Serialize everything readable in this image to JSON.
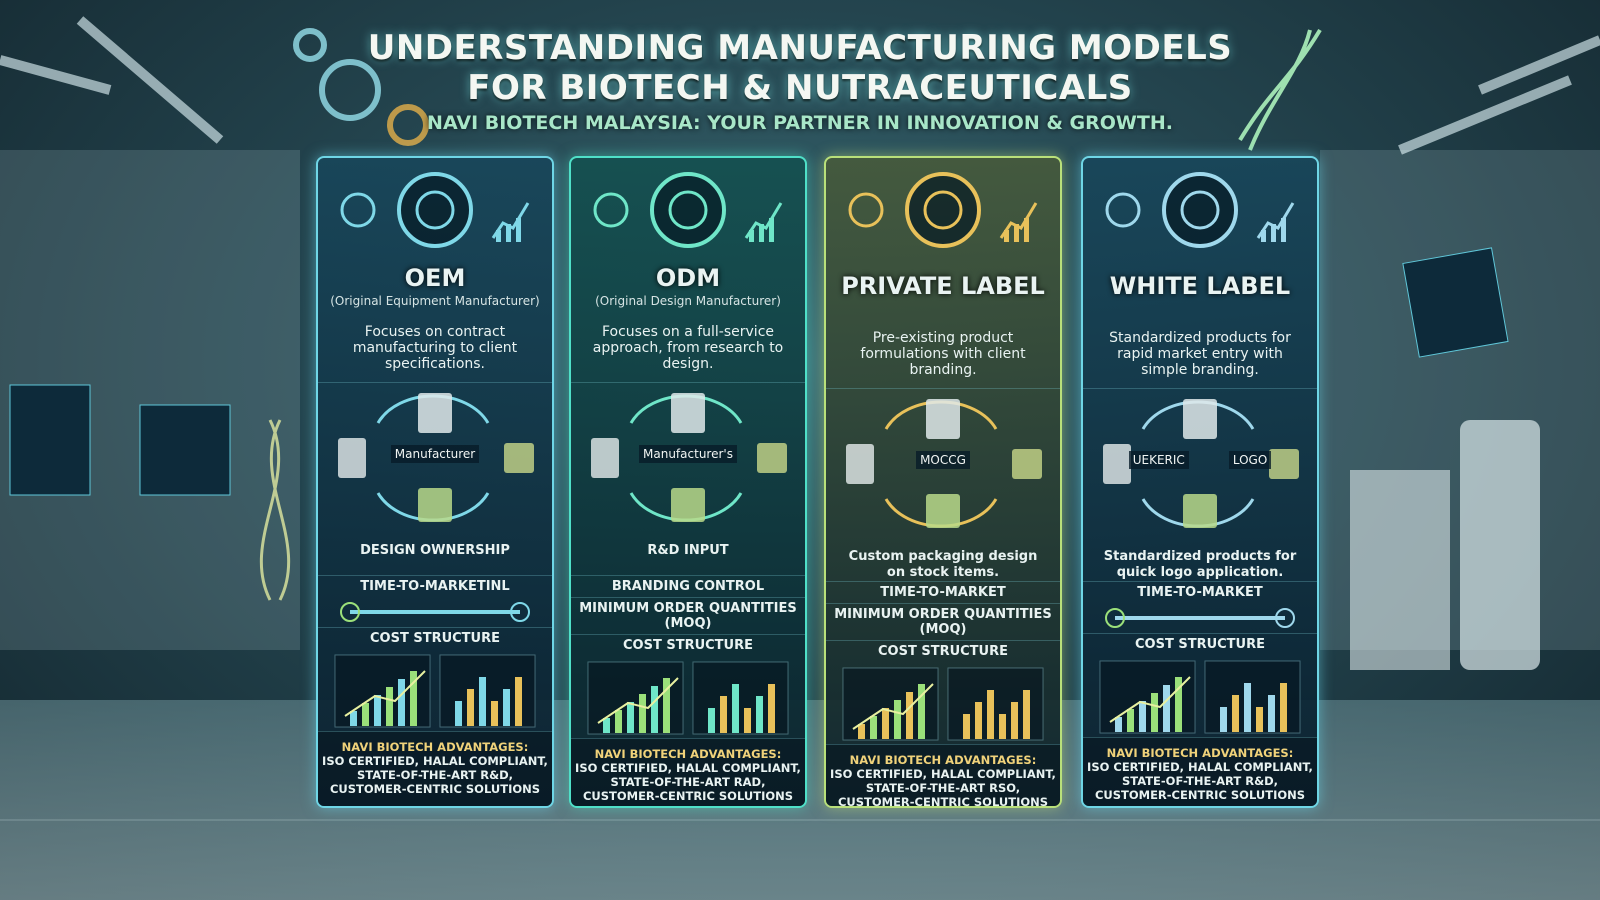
{
  "header": {
    "title_lines": [
      "UNDERSTANDING MANUFACTURING MODELS",
      "FOR BIOTECH & NUTRACEUTICALS"
    ],
    "subtitle": "NAVI BIOTECH MALAYSIA: YOUR PARTNER IN INNOVATION & GROWTH."
  },
  "columns": [
    {
      "name": "OEM",
      "subtitle": "(Original Equipment Manufacturer)",
      "description": "Focuses on contract manufacturing to client specifications.",
      "diagram_labels": [
        "Manufacturer"
      ],
      "caption": "DESIGN OWNERSHIP",
      "sections": [
        "TIME-TO-MARKETINL",
        "COST STRUCTURE"
      ],
      "advantages_heading": "NAVI BIOTECH ADVANTAGES:",
      "advantages": [
        "ISO CERTIFIED, HALAL COMPLIANT,",
        "STATE-OF-THE-ART R&D,",
        "CUSTOMER-CENTRIC SOLUTIONS"
      ]
    },
    {
      "name": "ODM",
      "subtitle": "(Original Design Manufacturer)",
      "description": "Focuses on a full-service approach, from research to design.",
      "diagram_labels": [
        "Manufacturer's"
      ],
      "caption": "R&D INPUT",
      "sections": [
        "BRANDING CONTROL",
        "MINIMUM ORDER QUANTITIES (MOQ)",
        "COST STRUCTURE"
      ],
      "advantages_heading": "NAVI BIOTECH ADVANTAGES:",
      "advantages": [
        "ISO CERTIFIED, HALAL COMPLIANT,",
        "STATE-OF-THE-ART RAD,",
        "CUSTOMER-CENTRIC SOLUTIONS"
      ]
    },
    {
      "name": "PRIVATE LABEL",
      "description": "Pre-existing product formulations with client branding.",
      "diagram_labels": [
        "MOCCG"
      ],
      "caption": "Custom packaging design on stock items.",
      "sections": [
        "TIME-TO-MARKET",
        "MINIMUM ORDER QUANTITIES (MOQ)",
        "COST STRUCTURE"
      ],
      "advantages_heading": "NAVI BIOTECH ADVANTAGES:",
      "advantages": [
        "ISO CERTIFIED, HALAL COMPLIANT,",
        "STATE-OF-THE-ART RSO,",
        "CUSTOMER-CENTRIC SOLUTIONS"
      ]
    },
    {
      "name": "WHITE LABEL",
      "description": "Standardized products for rapid market entry with simple branding.",
      "diagram_labels": [
        "UEKERIC",
        "LOGO"
      ],
      "caption": "Standardized products for quick logo application.",
      "sections": [
        "TIME-TO-MARKET",
        "COST STRUCTURE"
      ],
      "advantages_heading": "NAVI BIOTECH ADVANTAGES:",
      "advantages": [
        "ISO CERTIFIED, HALAL COMPLIANT,",
        "STATE-OF-THE-ART R&D,",
        "CUSTOMER-CENTRIC SOLUTIONS"
      ]
    }
  ]
}
